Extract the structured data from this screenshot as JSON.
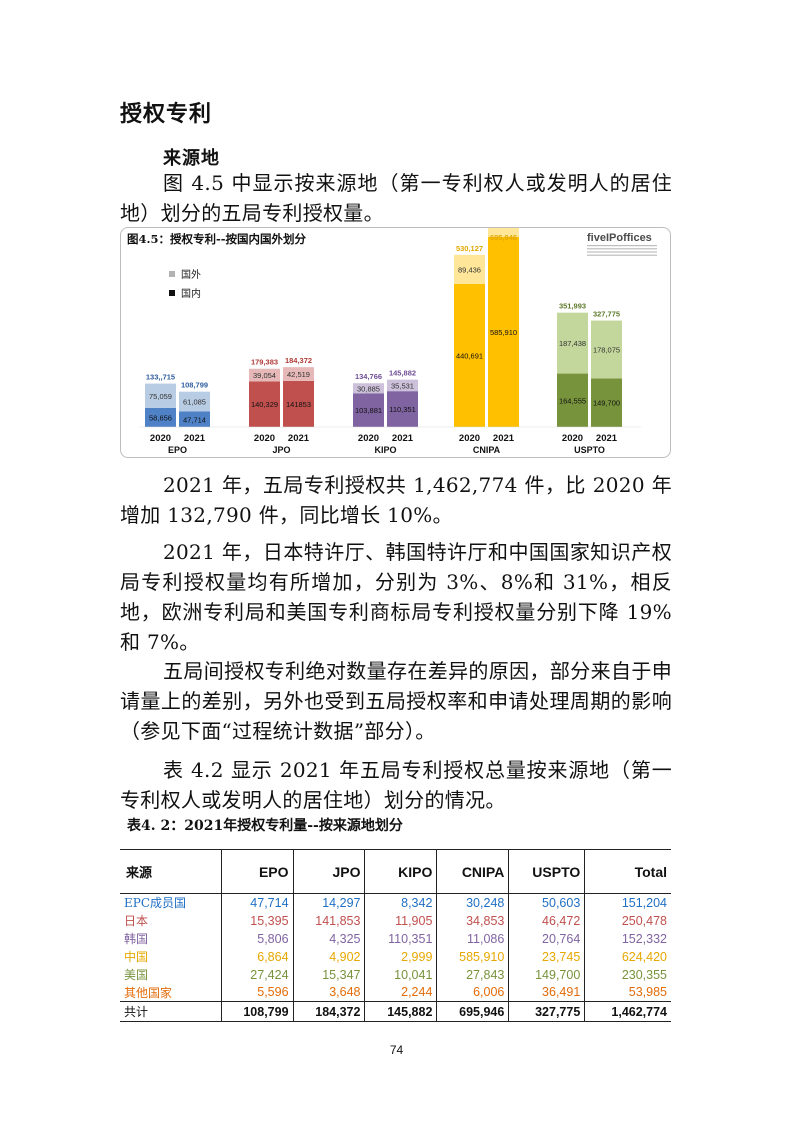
{
  "section_title": "授权专利",
  "subsection_title": "来源地",
  "paragraphs": {
    "p1": "图 4.5 中显示按来源地（第一专利权人或发明人的居住地）划分的五局专利授权量。",
    "p2": "2021 年，五局专利授权共 1,462,774 件，比 2020 年增加 132,790 件，同比增长 10%。",
    "p3": "2021 年，日本特许厅、韩国特许厅和中国国家知识产权局专利授权量均有所增加，分别为 3%、8%和 31%，相反地，欧洲专利局和美国专利商标局专利授权量分别下降 19%和 7%。",
    "p4": "五局间授权专利绝对数量存在差异的原因，部分来自于申请量上的差别，另外也受到五局授权率和申请处理周期的影响（参见下面“过程统计数据”部分）。",
    "p5": "表 4.2 显示 2021 年五局专利授权总量按来源地（第一专利权人或发明人的居住地）划分的情况。"
  },
  "chart_data": {
    "type": "bar",
    "stacked": true,
    "title": "图4.5：授权专利--按国内国外划分",
    "logo_text": "fiveIPoffices",
    "legend": {
      "items": [
        "国外",
        "国内"
      ],
      "position": "top-left"
    },
    "groups": [
      {
        "office": "EPO",
        "color_dark": "#4f81c7",
        "color_light": "#b8cce4",
        "label_color": "#2e5c9e",
        "bars": [
          {
            "year": "2020",
            "domestic": 58656,
            "foreign": 75059,
            "total_label": "133,,715",
            "domestic_label": "58,656",
            "foreign_label": "75,059"
          },
          {
            "year": "2021",
            "domestic": 47714,
            "foreign": 61085,
            "total_label": "108,799",
            "domestic_label": "47,714",
            "foreign_label": "61,085"
          }
        ]
      },
      {
        "office": "JPO",
        "color_dark": "#c0504d",
        "color_light": "#e6b9b8",
        "label_color": "#b03a37",
        "bars": [
          {
            "year": "2020",
            "domestic": 140329,
            "foreign": 39054,
            "total_label": "179,383",
            "domestic_label": "140,329",
            "foreign_label": "39,054"
          },
          {
            "year": "2021",
            "domestic": 141853,
            "foreign": 42519,
            "total_label": "184,372",
            "domestic_label": "141853",
            "foreign_label": "42,519"
          }
        ]
      },
      {
        "office": "KIPO",
        "color_dark": "#8064a2",
        "color_light": "#ccc0da",
        "label_color": "#6f4e96",
        "bars": [
          {
            "year": "2020",
            "domestic": 103881,
            "foreign": 30885,
            "total_label": "134,766",
            "domestic_label": "103,881",
            "foreign_label": "30,885"
          },
          {
            "year": "2021",
            "domestic": 110351,
            "foreign": 35531,
            "total_label": "145,882",
            "domestic_label": "110,351",
            "foreign_label": "35,531"
          }
        ]
      },
      {
        "office": "CNIPA",
        "color_dark": "#ffc000",
        "color_light": "#ffe699",
        "label_color": "#e0a800",
        "bars": [
          {
            "year": "2020",
            "domestic": 440691,
            "foreign": 89436,
            "total_label": "530,127",
            "domestic_label": "440,691",
            "foreign_label": "89,436"
          },
          {
            "year": "2021",
            "domestic": 585910,
            "foreign": 110036,
            "total_label": "695,946",
            "domestic_label": "585,910",
            "foreign_label": "110,036"
          }
        ]
      },
      {
        "office": "USPTO",
        "color_dark": "#77933c",
        "color_light": "#c3d69b",
        "label_color": "#5e7a2a",
        "bars": [
          {
            "year": "2020",
            "domestic": 164555,
            "foreign": 187438,
            "total_label": "351,993",
            "domestic_label": "164,555",
            "foreign_label": "187,438"
          },
          {
            "year": "2021",
            "domestic": 149700,
            "foreign": 178075,
            "total_label": "327,775",
            "domestic_label": "149,700",
            "foreign_label": "178,075"
          }
        ]
      }
    ]
  },
  "table": {
    "title": "表4. 2：2021年授权专利量--按来源地划分",
    "headers": [
      "来源",
      "EPO",
      "JPO",
      "KIPO",
      "CNIPA",
      "USPTO",
      "Total"
    ],
    "rows": [
      {
        "color": "#1f6fc4",
        "cells": [
          "EPC成员国",
          "47,714",
          "14,297",
          "8,342",
          "30,248",
          "50,603",
          "151,204"
        ]
      },
      {
        "color": "#c0504d",
        "cells": [
          "日本",
          "15,395",
          "141,853",
          "11,905",
          "34,853",
          "46,472",
          "250,478"
        ]
      },
      {
        "color": "#8064a2",
        "cells": [
          "韩国",
          "5,806",
          "4,325",
          "110,351",
          "11,086",
          "20,764",
          "152,332"
        ]
      },
      {
        "color": "#e6a800",
        "cells": [
          "中国",
          "6,864",
          "4,902",
          "2,999",
          "585,910",
          "23,745",
          "624,420"
        ]
      },
      {
        "color": "#77933c",
        "cells": [
          "美国",
          "27,424",
          "15,347",
          "10,041",
          "27,843",
          "149,700",
          "230,355"
        ]
      },
      {
        "color": "#e36c09",
        "cells": [
          "其他国家",
          "5,596",
          "3,648",
          "2,244",
          "6,006",
          "36,491",
          "53,985"
        ]
      }
    ],
    "total_row": [
      "共计",
      "108,799",
      "184,372",
      "145,882",
      "695,946",
      "327,775",
      "1,462,774"
    ]
  },
  "page_number": "74"
}
